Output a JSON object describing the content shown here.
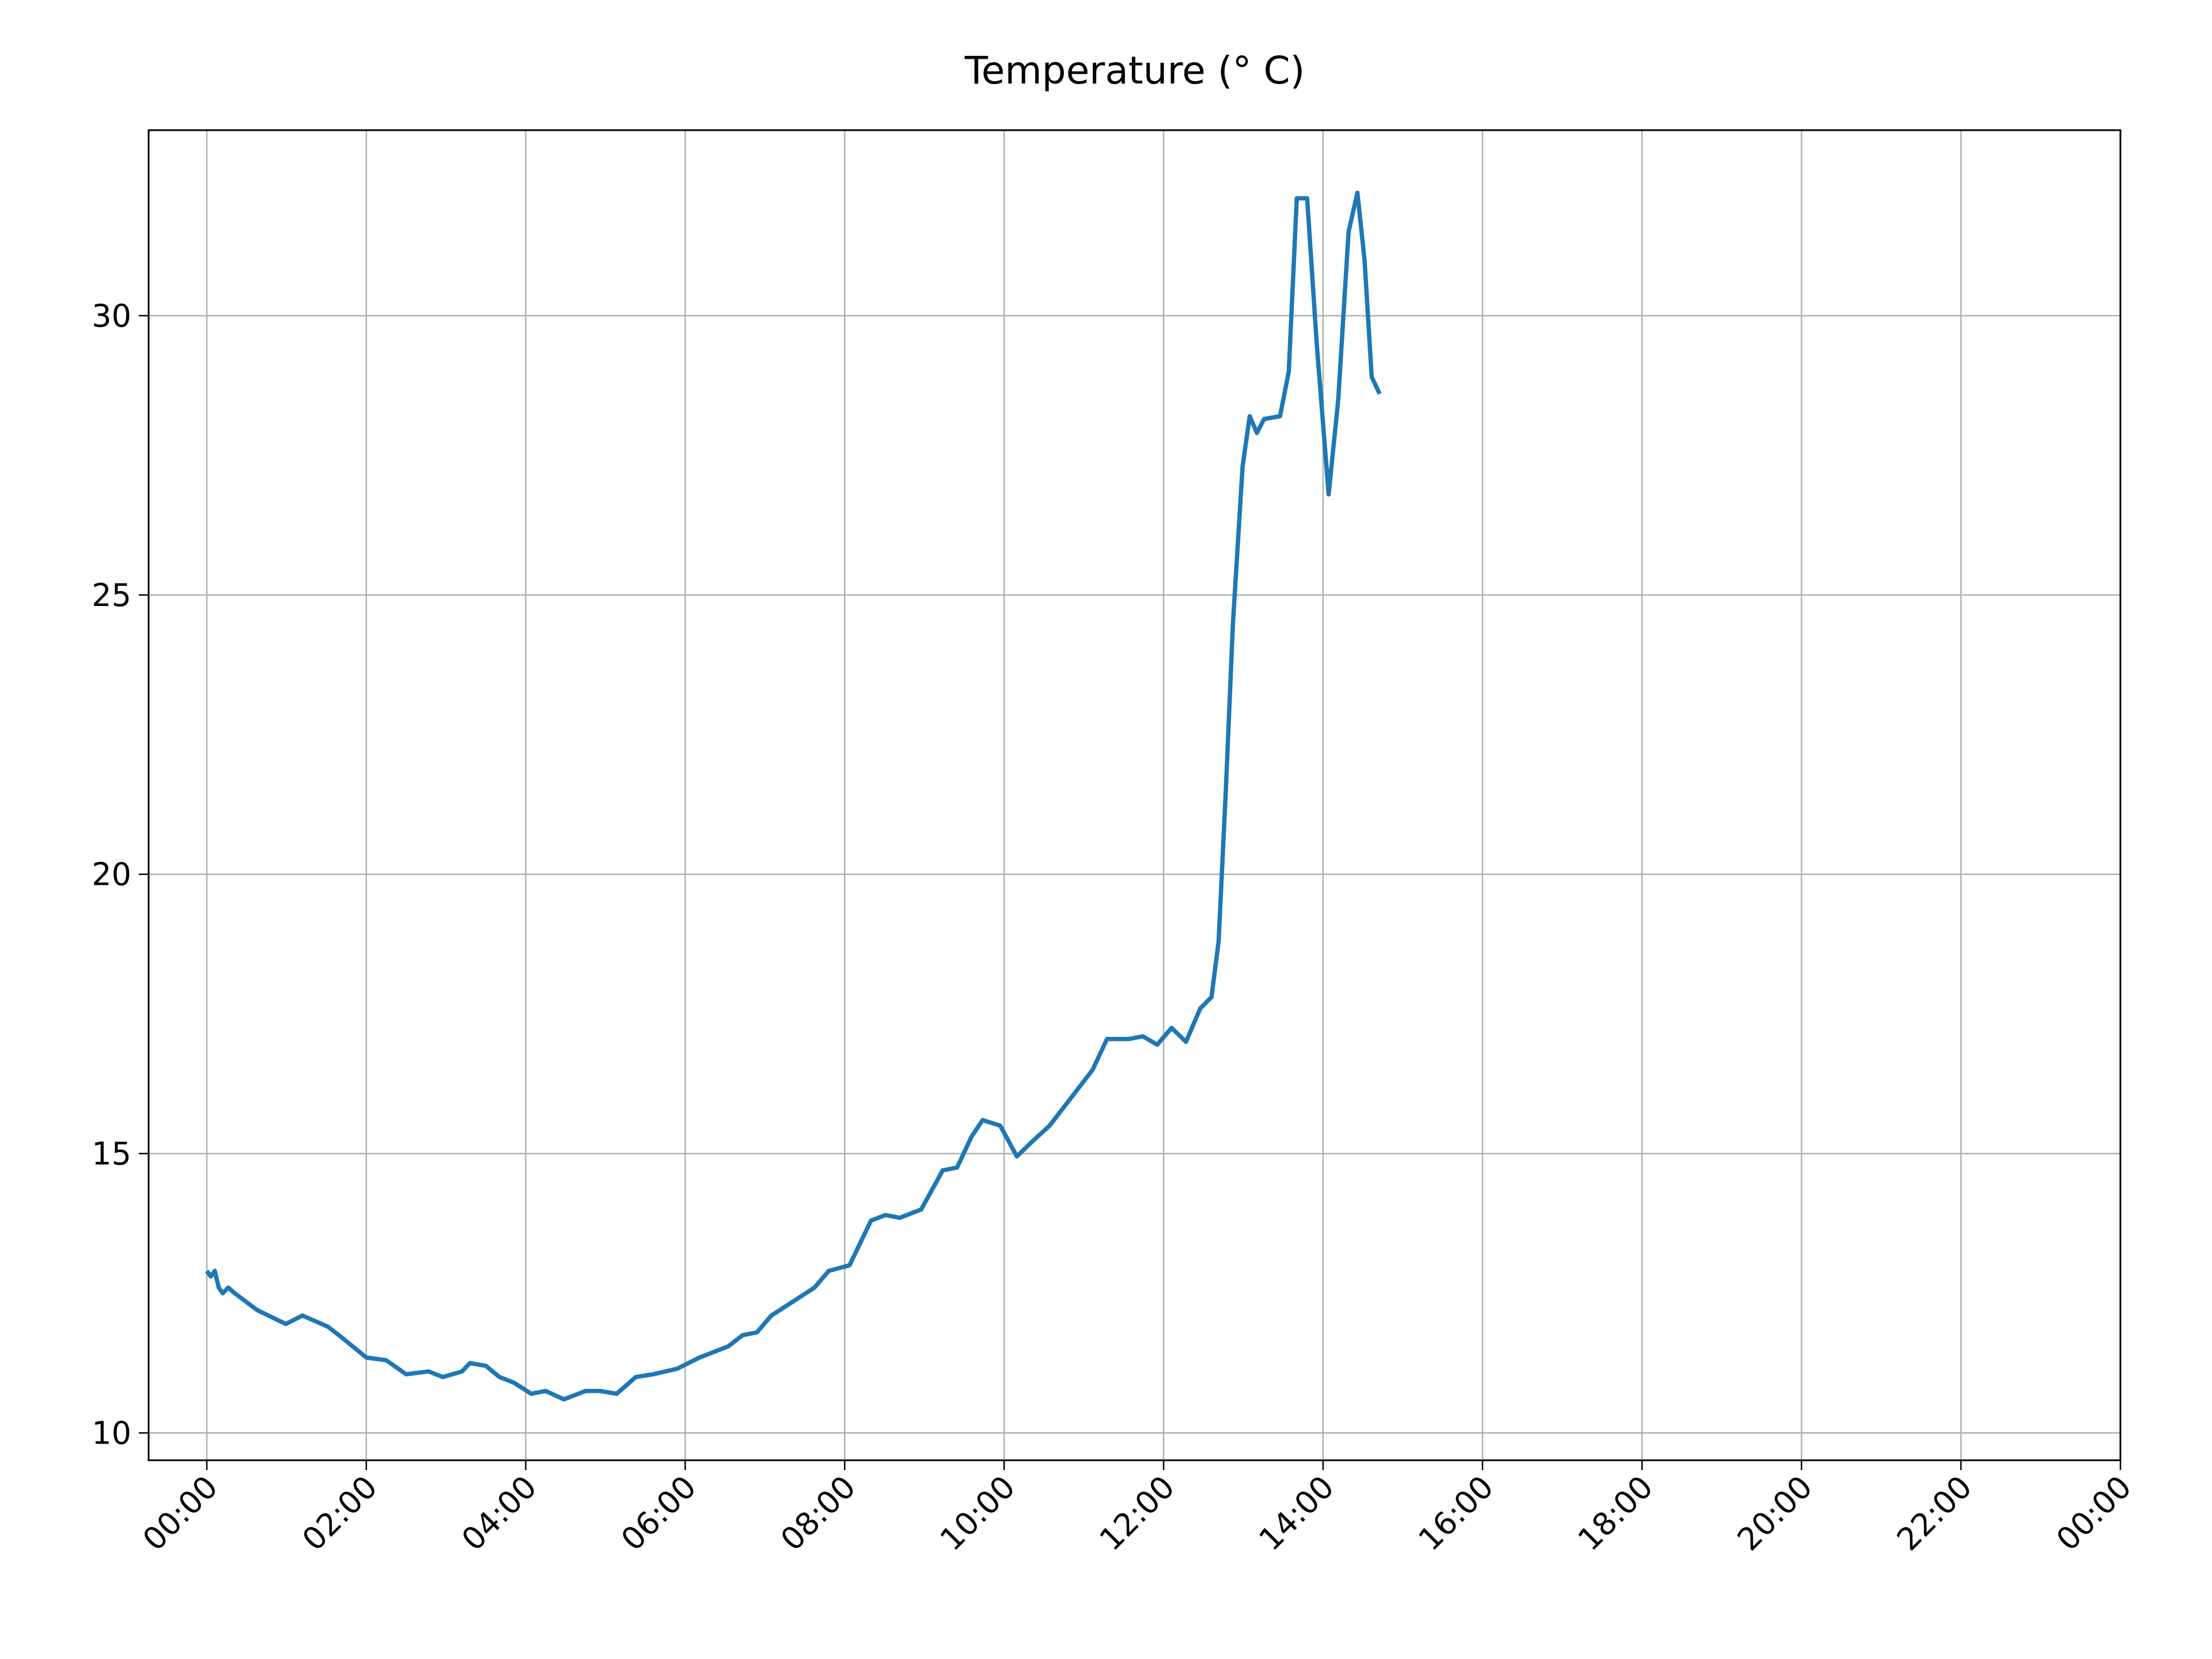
{
  "chart_data": {
    "type": "line",
    "title": "Temperature (° C)",
    "x": [
      0,
      0.05,
      0.1,
      0.15,
      0.2,
      0.27,
      0.35,
      0.63,
      0.99,
      1.2,
      1.52,
      1.7,
      2.0,
      2.25,
      2.5,
      2.78,
      2.96,
      3.2,
      3.3,
      3.5,
      3.67,
      3.85,
      4.07,
      4.25,
      4.48,
      4.75,
      4.93,
      5.14,
      5.38,
      5.6,
      5.9,
      6.18,
      6.54,
      6.72,
      6.9,
      7.08,
      7.35,
      7.62,
      7.8,
      8.06,
      8.33,
      8.51,
      8.69,
      8.96,
      9.23,
      9.41,
      9.59,
      9.73,
      9.95,
      10.16,
      10.34,
      10.57,
      10.84,
      11.11,
      11.29,
      11.56,
      11.74,
      11.92,
      12.1,
      12.28,
      12.46,
      12.6,
      12.69,
      12.78,
      12.87,
      12.99,
      13.08,
      13.17,
      13.26,
      13.46,
      13.57,
      13.67,
      13.8,
      13.92,
      14.07,
      14.19,
      14.32,
      14.43,
      14.52,
      14.61,
      14.71
    ],
    "series": [
      {
        "name": "Temperature",
        "color": "#1f77b4",
        "values": [
          12.9,
          12.8,
          12.9,
          12.6,
          12.5,
          12.6,
          12.5,
          12.2,
          11.95,
          12.1,
          11.9,
          11.7,
          11.35,
          11.3,
          11.05,
          11.1,
          11.0,
          11.1,
          11.25,
          11.2,
          11.0,
          10.9,
          10.7,
          10.75,
          10.6,
          10.75,
          10.75,
          10.7,
          11.0,
          11.05,
          11.15,
          11.35,
          11.55,
          11.75,
          11.8,
          12.1,
          12.35,
          12.6,
          12.9,
          13.0,
          13.8,
          13.9,
          13.85,
          14.0,
          14.7,
          14.75,
          15.3,
          15.6,
          15.5,
          14.95,
          15.2,
          15.5,
          16.0,
          16.5,
          17.05,
          17.05,
          17.1,
          16.95,
          17.25,
          17.0,
          17.6,
          17.8,
          18.8,
          21.5,
          24.5,
          27.3,
          28.2,
          27.9,
          28.15,
          28.2,
          29.0,
          32.1,
          32.1,
          29.5,
          26.8,
          28.5,
          31.5,
          32.2,
          31.0,
          28.9,
          28.6
        ]
      }
    ],
    "xlim": [
      -0.73,
      24
    ],
    "xticks": [
      {
        "value": 0,
        "label": "00:00"
      },
      {
        "value": 2,
        "label": "02:00"
      },
      {
        "value": 4,
        "label": "04:00"
      },
      {
        "value": 6,
        "label": "06:00"
      },
      {
        "value": 8,
        "label": "08:00"
      },
      {
        "value": 10,
        "label": "10:00"
      },
      {
        "value": 12,
        "label": "12:00"
      },
      {
        "value": 14,
        "label": "14:00"
      },
      {
        "value": 16,
        "label": "16:00"
      },
      {
        "value": 18,
        "label": "18:00"
      },
      {
        "value": 20,
        "label": "20:00"
      },
      {
        "value": 22,
        "label": "22:00"
      },
      {
        "value": 24,
        "label": "00:00"
      }
    ],
    "ylim": [
      9.51,
      33.32
    ],
    "yticks": [
      10,
      15,
      20,
      25,
      30
    ],
    "grid": true
  }
}
